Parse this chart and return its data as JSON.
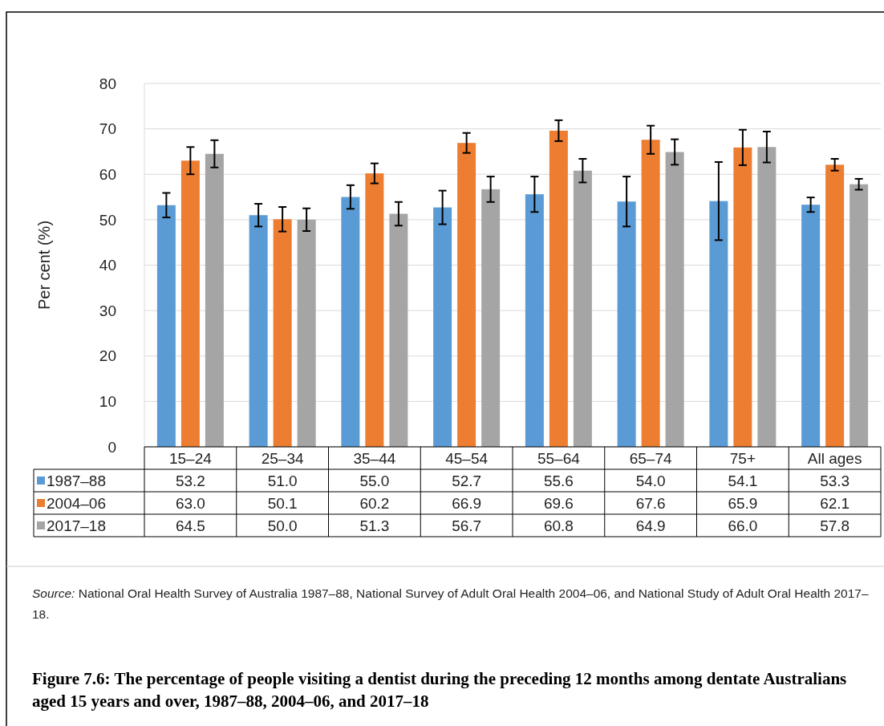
{
  "chart_data": {
    "type": "bar",
    "title": "Figure 7.6: The percentage of people visiting a dentist during the preceding 12 months among dentate Australians aged 15 years and over, 1987–88, 2004–06, and 2017–18",
    "ylabel": "Per cent (%)",
    "categories": [
      "15–24",
      "25–34",
      "35–44",
      "45–54",
      "55–64",
      "65–74",
      "75+",
      "All ages"
    ],
    "series": [
      {
        "name": "1987–88",
        "color": "#5b9bd5",
        "values": [
          53.2,
          51.0,
          55.0,
          52.7,
          55.6,
          54.0,
          54.1,
          53.3
        ],
        "value_labels": [
          "53.2",
          "51.0",
          "55.0",
          "52.7",
          "55.6",
          "54.0",
          "54.1",
          "53.3"
        ],
        "errors": [
          2.7,
          2.5,
          2.6,
          3.7,
          3.9,
          5.5,
          8.6,
          1.6
        ]
      },
      {
        "name": "2004–06",
        "color": "#ed7d31",
        "values": [
          63.0,
          50.1,
          60.2,
          66.9,
          69.6,
          67.6,
          65.9,
          62.1
        ],
        "value_labels": [
          "63.0",
          "50.1",
          "60.2",
          "66.9",
          "69.6",
          "67.6",
          "65.9",
          "62.1"
        ],
        "errors": [
          3.0,
          2.7,
          2.2,
          2.2,
          2.3,
          3.1,
          3.9,
          1.3
        ]
      },
      {
        "name": "2017–18",
        "color": "#a5a5a5",
        "values": [
          64.5,
          50.0,
          51.3,
          56.7,
          60.8,
          64.9,
          66.0,
          57.8
        ],
        "value_labels": [
          "64.5",
          "50.0",
          "51.3",
          "56.7",
          "60.8",
          "64.9",
          "66.0",
          "57.8"
        ],
        "errors": [
          3.0,
          2.5,
          2.6,
          2.8,
          2.6,
          2.8,
          3.4,
          1.2
        ]
      }
    ],
    "ylim": [
      0,
      80
    ],
    "yticks": [
      0,
      10,
      20,
      30,
      40,
      50,
      60,
      70,
      80
    ],
    "grid": "y",
    "legend": "bottom",
    "annotations": [
      "Source: National Oral Health Survey of Australia 1987–88, National Survey of Adult Oral Health 2004–06, and National Study of Adult Oral Health 2017–18."
    ]
  }
}
